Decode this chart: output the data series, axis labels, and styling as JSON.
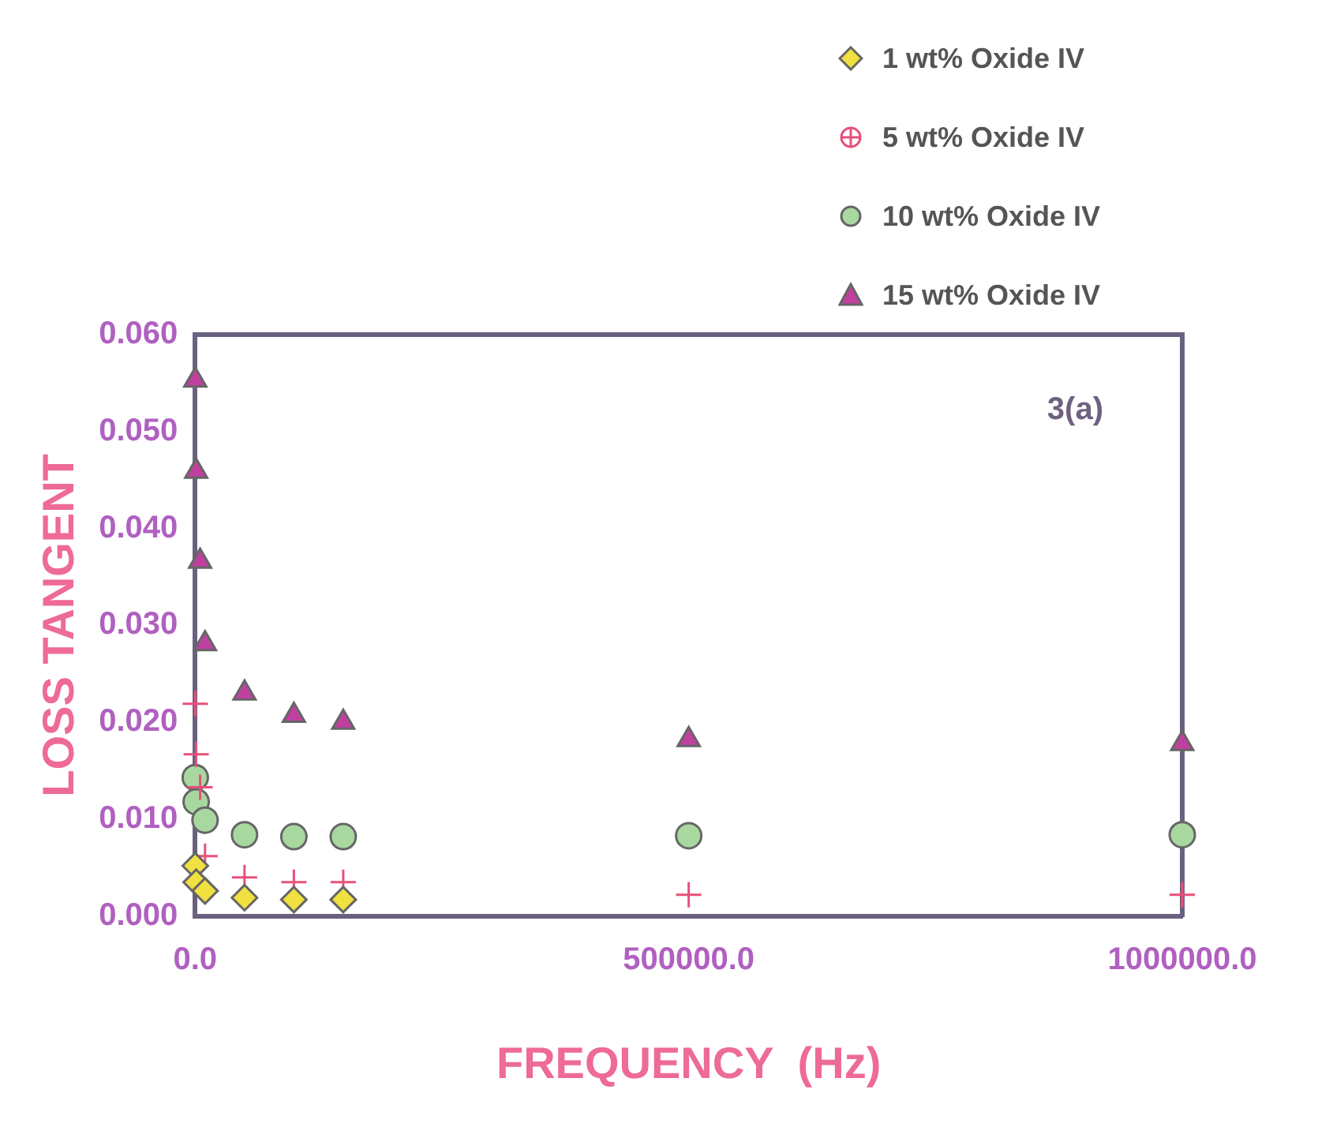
{
  "chart_data": {
    "type": "scatter",
    "xlabel": "FREQUENCY  (Hz)",
    "ylabel": "LOSS TANGENT",
    "annotations": [
      "3(a)"
    ],
    "xlim": [
      0,
      1000000
    ],
    "xticks": [
      {
        "value": 0,
        "label": "0.0"
      },
      {
        "value": 500000,
        "label": "500000.0"
      },
      {
        "value": 1000000,
        "label": "1000000.0"
      }
    ],
    "ylim": [
      0,
      0.06
    ],
    "yticks": [
      {
        "value": 0,
        "label": "0.000"
      },
      {
        "value": 0.01,
        "label": "0.010"
      },
      {
        "value": 0.02,
        "label": "0.020"
      },
      {
        "value": 0.03,
        "label": "0.030"
      },
      {
        "value": 0.04,
        "label": "0.040"
      },
      {
        "value": 0.05,
        "label": "0.050"
      },
      {
        "value": 0.06,
        "label": "0.060"
      }
    ],
    "grid": false,
    "legend": "top right",
    "series": [
      {
        "name": "1 wt% Oxide IV",
        "color": "#f0e040",
        "marker": "diamond",
        "x": [
          100,
          1000,
          10000,
          50000,
          100000,
          150000
        ],
        "values": [
          0.0052,
          0.0035,
          0.0026,
          0.0019,
          0.0017,
          0.0017
        ]
      },
      {
        "name": "5 wt% Oxide IV",
        "color": "#e8507a",
        "marker": "cross",
        "x": [
          100,
          1000,
          5000,
          10000,
          50000,
          100000,
          150000,
          500000,
          1000000
        ],
        "values": [
          0.0219,
          0.0167,
          0.0133,
          0.0062,
          0.004,
          0.0035,
          0.0035,
          0.0022,
          0.0022
        ]
      },
      {
        "name": "10 wt% Oxide IV",
        "color": "#a8d8a0",
        "marker": "circle",
        "x": [
          100,
          1000,
          10000,
          50000,
          100000,
          150000,
          500000,
          1000000
        ],
        "values": [
          0.0143,
          0.0118,
          0.0099,
          0.0084,
          0.0082,
          0.0082,
          0.0083,
          0.0084
        ]
      },
      {
        "name": "15 wt% Oxide IV",
        "color": "#c040a0",
        "marker": "triangle",
        "x": [
          100,
          1000,
          5000,
          10000,
          50000,
          100000,
          150000,
          500000,
          1000000
        ],
        "values": [
          0.0553,
          0.0459,
          0.0366,
          0.0281,
          0.023,
          0.0207,
          0.02,
          0.0182,
          0.0178
        ]
      }
    ]
  }
}
